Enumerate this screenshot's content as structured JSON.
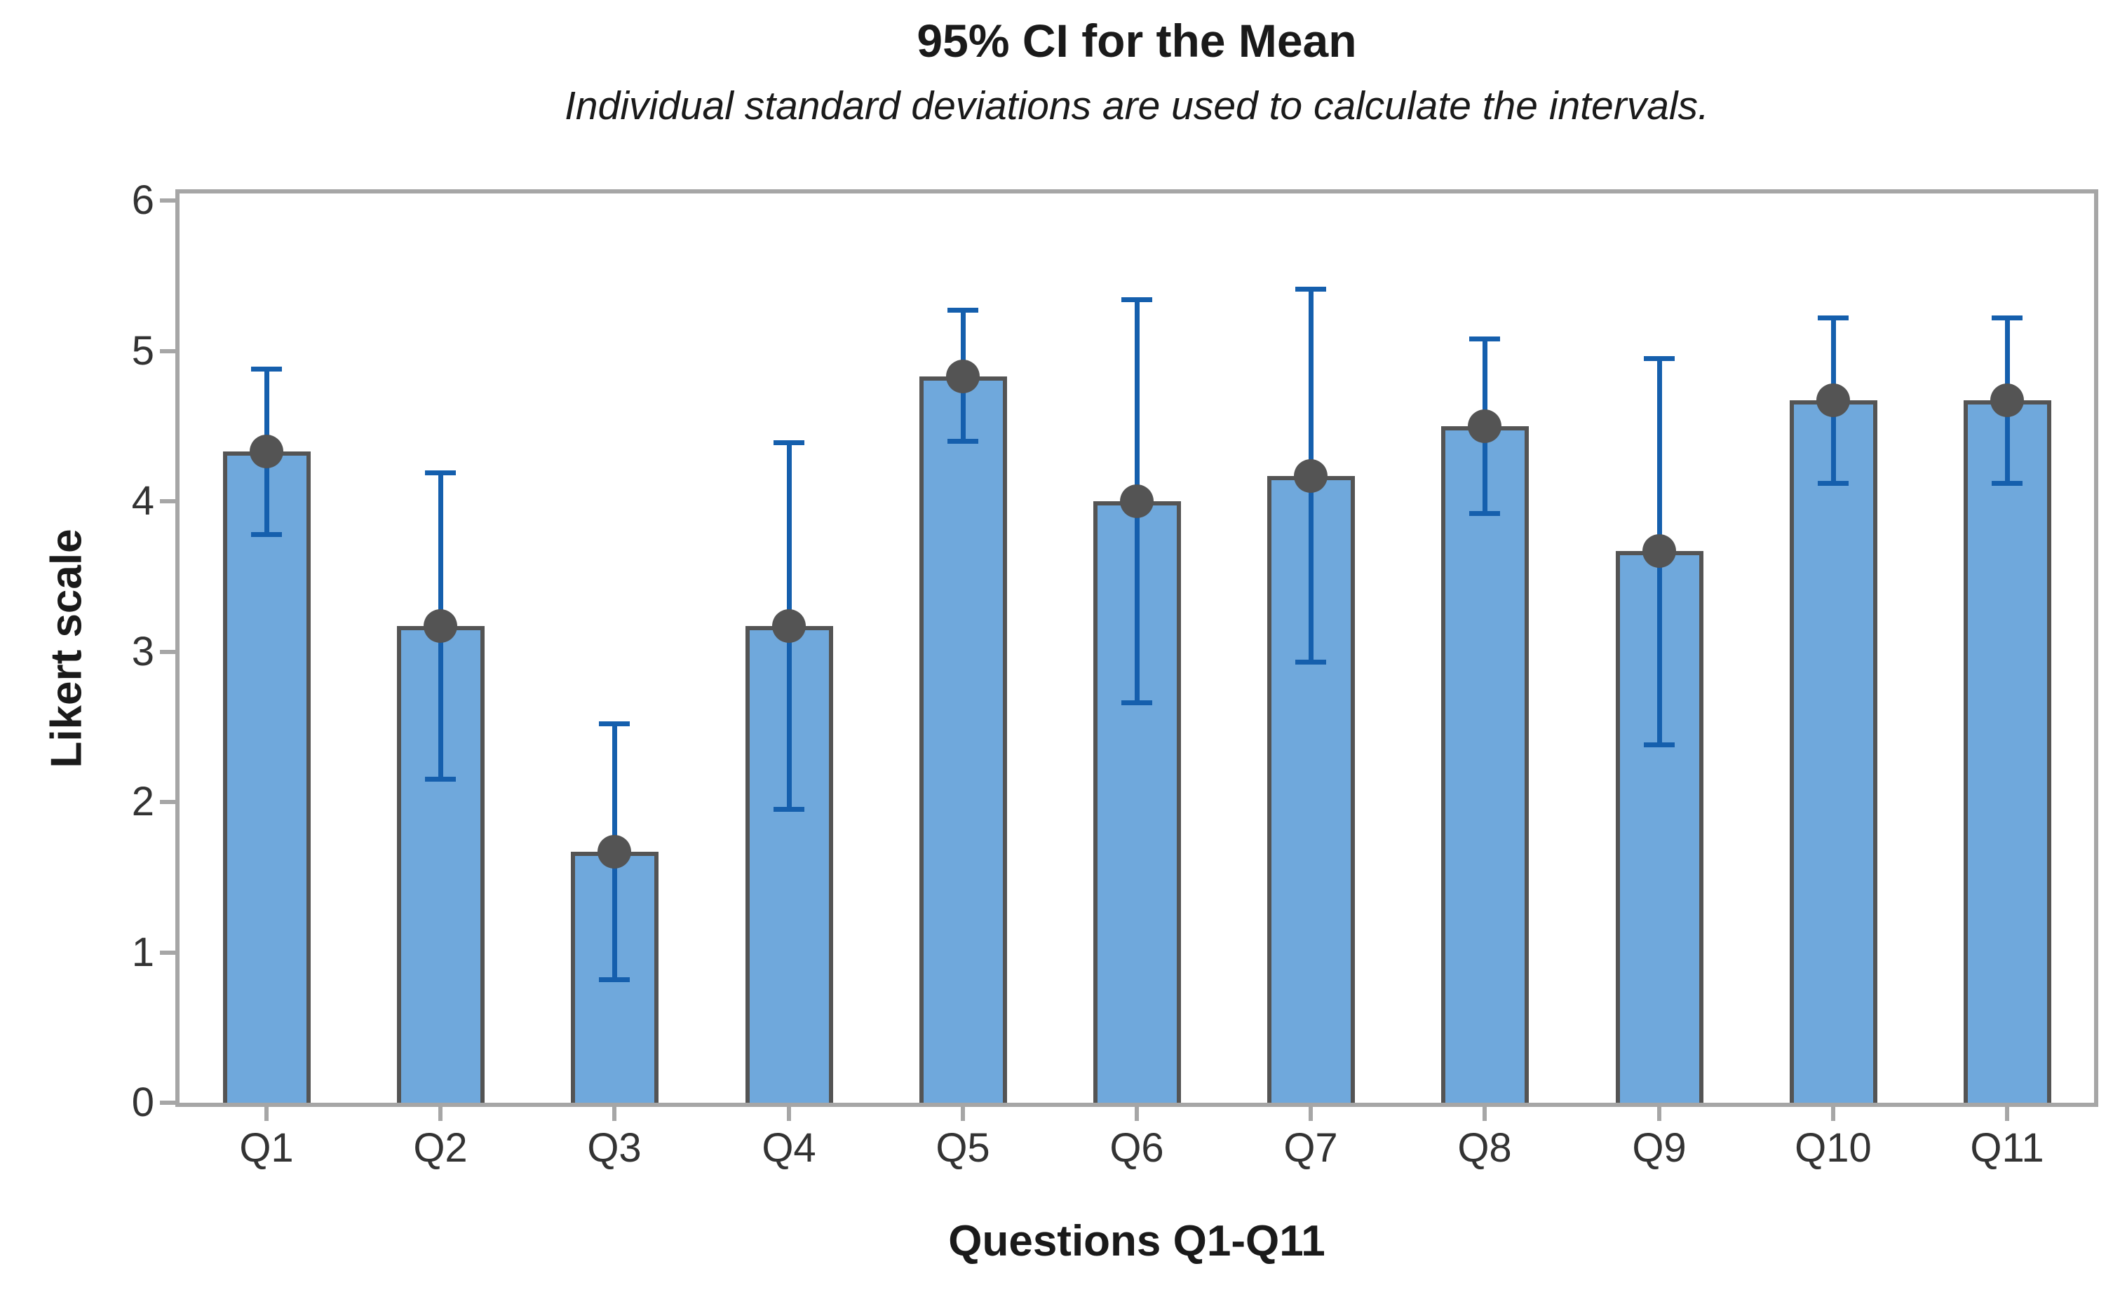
{
  "chart_data": {
    "type": "bar",
    "title": "95% CI for the Mean",
    "subtitle": "Individual standard deviations are used to calculate the intervals.",
    "xlabel": "Questions Q1-Q11",
    "ylabel": "Likert scale",
    "categories": [
      "Q1",
      "Q2",
      "Q3",
      "Q4",
      "Q5",
      "Q6",
      "Q7",
      "Q8",
      "Q9",
      "Q10",
      "Q11"
    ],
    "series": [
      {
        "name": "Mean",
        "values": [
          4.33,
          3.17,
          1.67,
          3.17,
          4.83,
          4.0,
          4.17,
          4.5,
          3.67,
          4.67,
          4.67
        ]
      },
      {
        "name": "95% CI lower",
        "values": [
          3.78,
          2.15,
          0.82,
          1.95,
          4.4,
          2.66,
          2.93,
          3.92,
          2.38,
          4.12,
          4.12
        ]
      },
      {
        "name": "95% CI upper",
        "values": [
          4.88,
          4.19,
          2.52,
          4.39,
          5.27,
          5.34,
          5.41,
          5.08,
          4.95,
          5.22,
          5.22
        ]
      }
    ],
    "error_bars": "95% confidence interval with mean marker",
    "ylim": [
      0,
      6
    ],
    "yticks": [
      0,
      1,
      2,
      3,
      4,
      5,
      6
    ],
    "grid": false,
    "legend": "none",
    "colors": {
      "bar_fill": "#6fa8dc",
      "bar_border": "#545454",
      "interval_line": "#155fad",
      "mean_marker": "#545454",
      "axis_line": "#a6a6a6",
      "tick_label": "#333333",
      "text": "#1a1a1a"
    }
  }
}
